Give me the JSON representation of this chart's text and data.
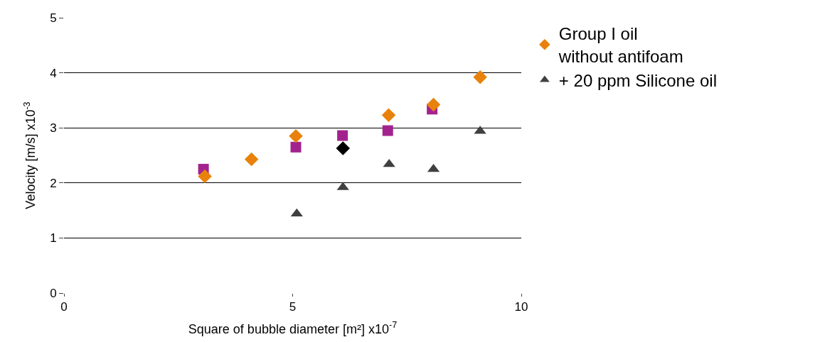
{
  "chart_data": {
    "type": "scatter",
    "xlabel": "Square of bubble diameter [m²] x10$^{-7}$",
    "ylabel": "Velocity [m/s] x10$^{-3}$",
    "xlim": [
      0,
      10
    ],
    "xticks": [
      0,
      5,
      10
    ],
    "ylim": [
      0,
      5
    ],
    "yticks": [
      0,
      1,
      2,
      3,
      4,
      5
    ],
    "grid": "y",
    "legend": "right",
    "series": [
      {
        "name": "Group I oil\nwithout antifoam",
        "color": "#e8820c",
        "marker": "diamond",
        "x": [
          3.08,
          4.1,
          5.07,
          7.1,
          8.08,
          9.1
        ],
        "values": [
          2.12,
          2.43,
          2.85,
          3.23,
          3.42,
          3.92
        ]
      },
      {
        "color": "#a3238e",
        "marker": "square",
        "x": [
          3.05,
          5.07,
          6.09,
          7.08,
          8.05
        ],
        "values": [
          2.25,
          2.65,
          2.86,
          2.95,
          3.34
        ]
      },
      {
        "color": "#000000",
        "marker": "diamond",
        "x": [
          6.1
        ],
        "values": [
          2.63
        ]
      },
      {
        "name": "+ 20 ppm Silicone oil",
        "color": "#404040",
        "marker": "triangle",
        "x": [
          5.09,
          6.1,
          7.11,
          8.08,
          9.1
        ],
        "values": [
          1.44,
          1.92,
          2.34,
          2.25,
          2.94
        ]
      }
    ]
  }
}
